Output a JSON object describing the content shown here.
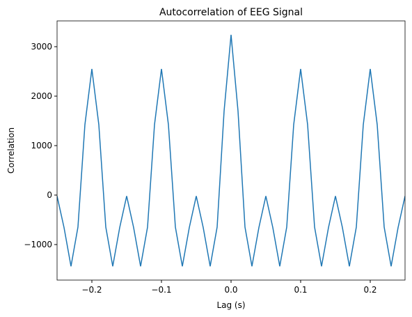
{
  "chart_data": {
    "type": "line",
    "title": "Autocorrelation of EEG Signal",
    "xlabel": "Lag (s)",
    "ylabel": "Correlation",
    "x": [
      -0.25,
      -0.24,
      -0.23,
      -0.22,
      -0.21,
      -0.2,
      -0.19,
      -0.18,
      -0.17,
      -0.16,
      -0.15,
      -0.14,
      -0.13,
      -0.12,
      -0.11,
      -0.1,
      -0.09,
      -0.08,
      -0.07,
      -0.06,
      -0.05,
      -0.04,
      -0.03,
      -0.02,
      -0.01,
      0,
      0.01,
      0.02,
      0.03,
      0.04,
      0.05,
      0.06,
      0.07,
      0.08,
      0.09,
      0.1,
      0.11,
      0.12,
      0.13,
      0.14,
      0.15,
      0.16,
      0.17,
      0.18,
      0.19,
      0.2,
      0.21,
      0.22,
      0.23,
      0.24,
      0.25
    ],
    "series": [
      {
        "name": "Autocorrelation",
        "color": "#1f77b4",
        "values": [
          -20,
          -656,
          -1440,
          -646,
          1423,
          2550,
          1423,
          -646,
          -1440,
          -656,
          -20,
          -656,
          -1440,
          -646,
          1423,
          2550,
          1423,
          -646,
          -1440,
          -656,
          -20,
          -656,
          -1440,
          -646,
          1700,
          3240,
          1700,
          -646,
          -1440,
          -656,
          -20,
          -656,
          -1440,
          -646,
          1423,
          2550,
          1423,
          -646,
          -1440,
          -656,
          -20,
          -656,
          -1440,
          -646,
          1423,
          2550,
          1423,
          -646,
          -1440,
          -656,
          -20
        ]
      }
    ],
    "xlim": [
      -0.25,
      0.25
    ],
    "xticks": [
      {
        "value": -0.2,
        "label": "−0.2"
      },
      {
        "value": -0.1,
        "label": "−0.1"
      },
      {
        "value": 0,
        "label": "0.0"
      },
      0.1,
      0.2
    ],
    "ylim": [
      -1718,
      3521
    ],
    "yticks": [
      {
        "value": -1000,
        "label": "−1000"
      },
      0,
      1000,
      2000,
      3000
    ],
    "grid": false
  }
}
